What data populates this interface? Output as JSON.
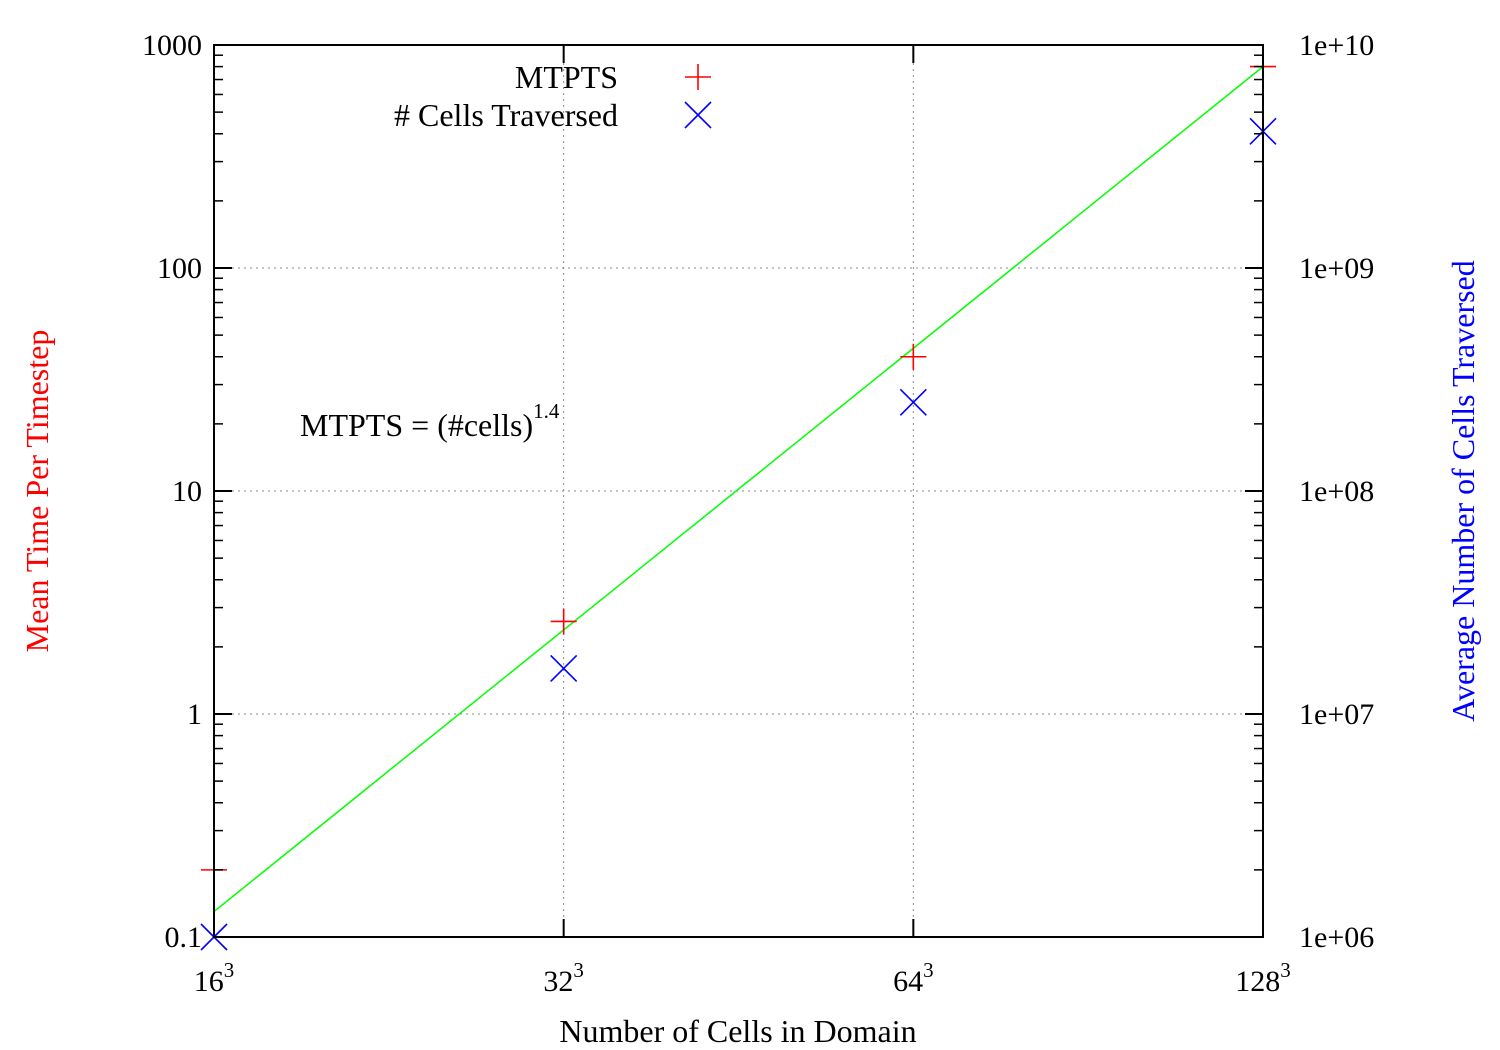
{
  "chart_data": {
    "type": "scatter",
    "x_scale": "log",
    "x_ticks": [
      {
        "value": 4096,
        "base": "16",
        "exp": "3"
      },
      {
        "value": 32768,
        "base": "32",
        "exp": "3"
      },
      {
        "value": 262144,
        "base": "64",
        "exp": "3"
      },
      {
        "value": 2097152,
        "base": "128",
        "exp": "3"
      }
    ],
    "xlim": [
      4096,
      2097152
    ],
    "xlabel": "Number of Cells in Domain",
    "ylabel_left": "Mean Time Per Timestep",
    "ylabel_right": "Average Number of Cells Traversed",
    "ylim_left": [
      0.1,
      1000
    ],
    "ylim_right": [
      1000000,
      10000000000
    ],
    "y_scale": "log",
    "y_ticks_left": [
      "0.1",
      "1",
      "10",
      "100",
      "1000"
    ],
    "y_ticks_right": [
      "1e+06",
      "1e+07",
      "1e+08",
      "1e+09",
      "1e+10"
    ],
    "grid": true,
    "legend_position": "top",
    "series": [
      {
        "name": "MTPTS",
        "axis": "left",
        "marker": "plus",
        "color": "#ff0000",
        "points": [
          {
            "x": 4096,
            "y": 0.2
          },
          {
            "x": 32768,
            "y": 2.6
          },
          {
            "x": 262144,
            "y": 40
          },
          {
            "x": 2097152,
            "y": 800
          }
        ]
      },
      {
        "name": "# Cells Traversed",
        "axis": "right",
        "marker": "cross",
        "color": "#0000ff",
        "points": [
          {
            "x": 4096,
            "y": 1000000
          },
          {
            "x": 32768,
            "y": 16000000
          },
          {
            "x": 262144,
            "y": 250000000
          },
          {
            "x": 2097152,
            "y": 4100000000
          }
        ]
      }
    ],
    "fit_line": {
      "color": "#00ff00",
      "axis": "left",
      "points": [
        {
          "x": 4096,
          "y": 0.13
        },
        {
          "x": 2097152,
          "y": 800
        }
      ]
    },
    "annotation": {
      "text": "MTPTS = (#cells)",
      "exponent": "1.4"
    },
    "colors": {
      "left_axis": "#ff0000",
      "right_axis": "#0000ff",
      "grid": "#888888"
    }
  }
}
